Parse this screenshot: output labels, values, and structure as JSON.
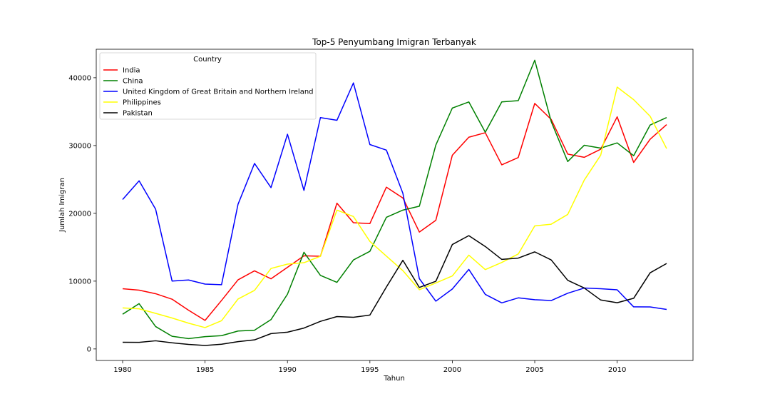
{
  "chart_data": {
    "type": "line",
    "title": "Top-5 Penyumbang Imigran Terbanyak",
    "xlabel": "Tahun",
    "ylabel": "Jumlah Imigran",
    "xlim": [
      1978.4,
      2014.6
    ],
    "ylim": [
      -1700,
      44200
    ],
    "xticks": [
      1980,
      1985,
      1990,
      1995,
      2000,
      2005,
      2010
    ],
    "yticks": [
      0,
      10000,
      20000,
      30000,
      40000
    ],
    "grid": false,
    "legend": {
      "title": "Country",
      "placement": "top-left"
    },
    "x": [
      1980,
      1981,
      1982,
      1983,
      1984,
      1985,
      1986,
      1987,
      1988,
      1989,
      1990,
      1991,
      1992,
      1993,
      1994,
      1995,
      1996,
      1997,
      1998,
      1999,
      2000,
      2001,
      2002,
      2003,
      2004,
      2005,
      2006,
      2007,
      2008,
      2009,
      2010,
      2011,
      2012,
      2013
    ],
    "series": [
      {
        "name": "India",
        "color": "#ff0000",
        "values": [
          8880,
          8670,
          8147,
          7338,
          5704,
          4211,
          7150,
          10189,
          11522,
          10343,
          12041,
          13734,
          13673,
          21496,
          18620,
          18489,
          23859,
          22268,
          17241,
          18974,
          28572,
          31223,
          31889,
          27155,
          28235,
          36210,
          33848,
          28742,
          28261,
          29456,
          34235,
          27509,
          30933,
          33087
        ]
      },
      {
        "name": "China",
        "color": "#008000",
        "values": [
          5123,
          6682,
          3308,
          1863,
          1527,
          1816,
          1960,
          2643,
          2758,
          4323,
          8076,
          14255,
          10846,
          9817,
          13128,
          14398,
          19415,
          20475,
          21049,
          30069,
          35529,
          36434,
          31961,
          36439,
          36619,
          42584,
          33518,
          27642,
          30037,
          29622,
          30391,
          28502,
          33024,
          34129
        ]
      },
      {
        "name": "United Kingdom of Great Britain and Northern Ireland",
        "color": "#0000ff",
        "values": [
          22045,
          24796,
          20620,
          10015,
          10170,
          9564,
          9470,
          21337,
          27359,
          23795,
          31668,
          23380,
          34123,
          33720,
          39231,
          30145,
          29322,
          22965,
          10367,
          7045,
          8840,
          11728,
          8046,
          6797,
          7533,
          7258,
          7140,
          8216,
          8979,
          8876,
          8724,
          6204,
          6195,
          5827
        ]
      },
      {
        "name": "Philippines",
        "color": "#ffff00",
        "values": [
          6051,
          5921,
          5249,
          4562,
          3801,
          3150,
          4166,
          7360,
          8639,
          11865,
          12509,
          12718,
          13670,
          20479,
          19532,
          15864,
          13692,
          11549,
          8735,
          9734,
          10763,
          13836,
          11707,
          12758,
          14004,
          18139,
          18400,
          19837,
          24887,
          28573,
          38617,
          36765,
          34315,
          29544
        ]
      },
      {
        "name": "Pakistan",
        "color": "#000000",
        "values": [
          978,
          972,
          1201,
          900,
          668,
          514,
          691,
          1072,
          1334,
          2261,
          2470,
          3079,
          4071,
          4777,
          4666,
          4994,
          9125,
          13073,
          9068,
          9979,
          15400,
          16708,
          15110,
          13205,
          13399,
          14314,
          13127,
          10124,
          8994,
          7217,
          6811,
          7468,
          11227,
          12603
        ]
      }
    ]
  }
}
